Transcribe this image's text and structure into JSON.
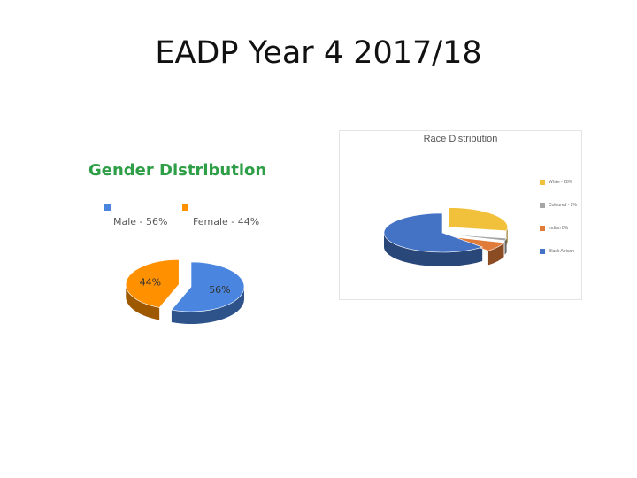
{
  "slide": {
    "title": "EADP Year 4 2017/18"
  },
  "chart_data": [
    {
      "type": "pie",
      "title": "Gender Distribution",
      "categories": [
        "Male - 56%",
        "Female - 44%"
      ],
      "values": [
        56,
        44
      ],
      "data_labels": [
        "56%",
        "44%"
      ],
      "colors": [
        "#4a86e0",
        "#ff9000"
      ],
      "legend_position": "top"
    },
    {
      "type": "pie",
      "title": "Race Distribution",
      "categories": [
        "White - 28%",
        "Coloured - 2%",
        "Indian 8%",
        "Black African -"
      ],
      "values": [
        28,
        2,
        8,
        62
      ],
      "colors": [
        "#f2c13b",
        "#a5a5a5",
        "#e07b39",
        "#4472c4"
      ],
      "legend_position": "right"
    }
  ]
}
